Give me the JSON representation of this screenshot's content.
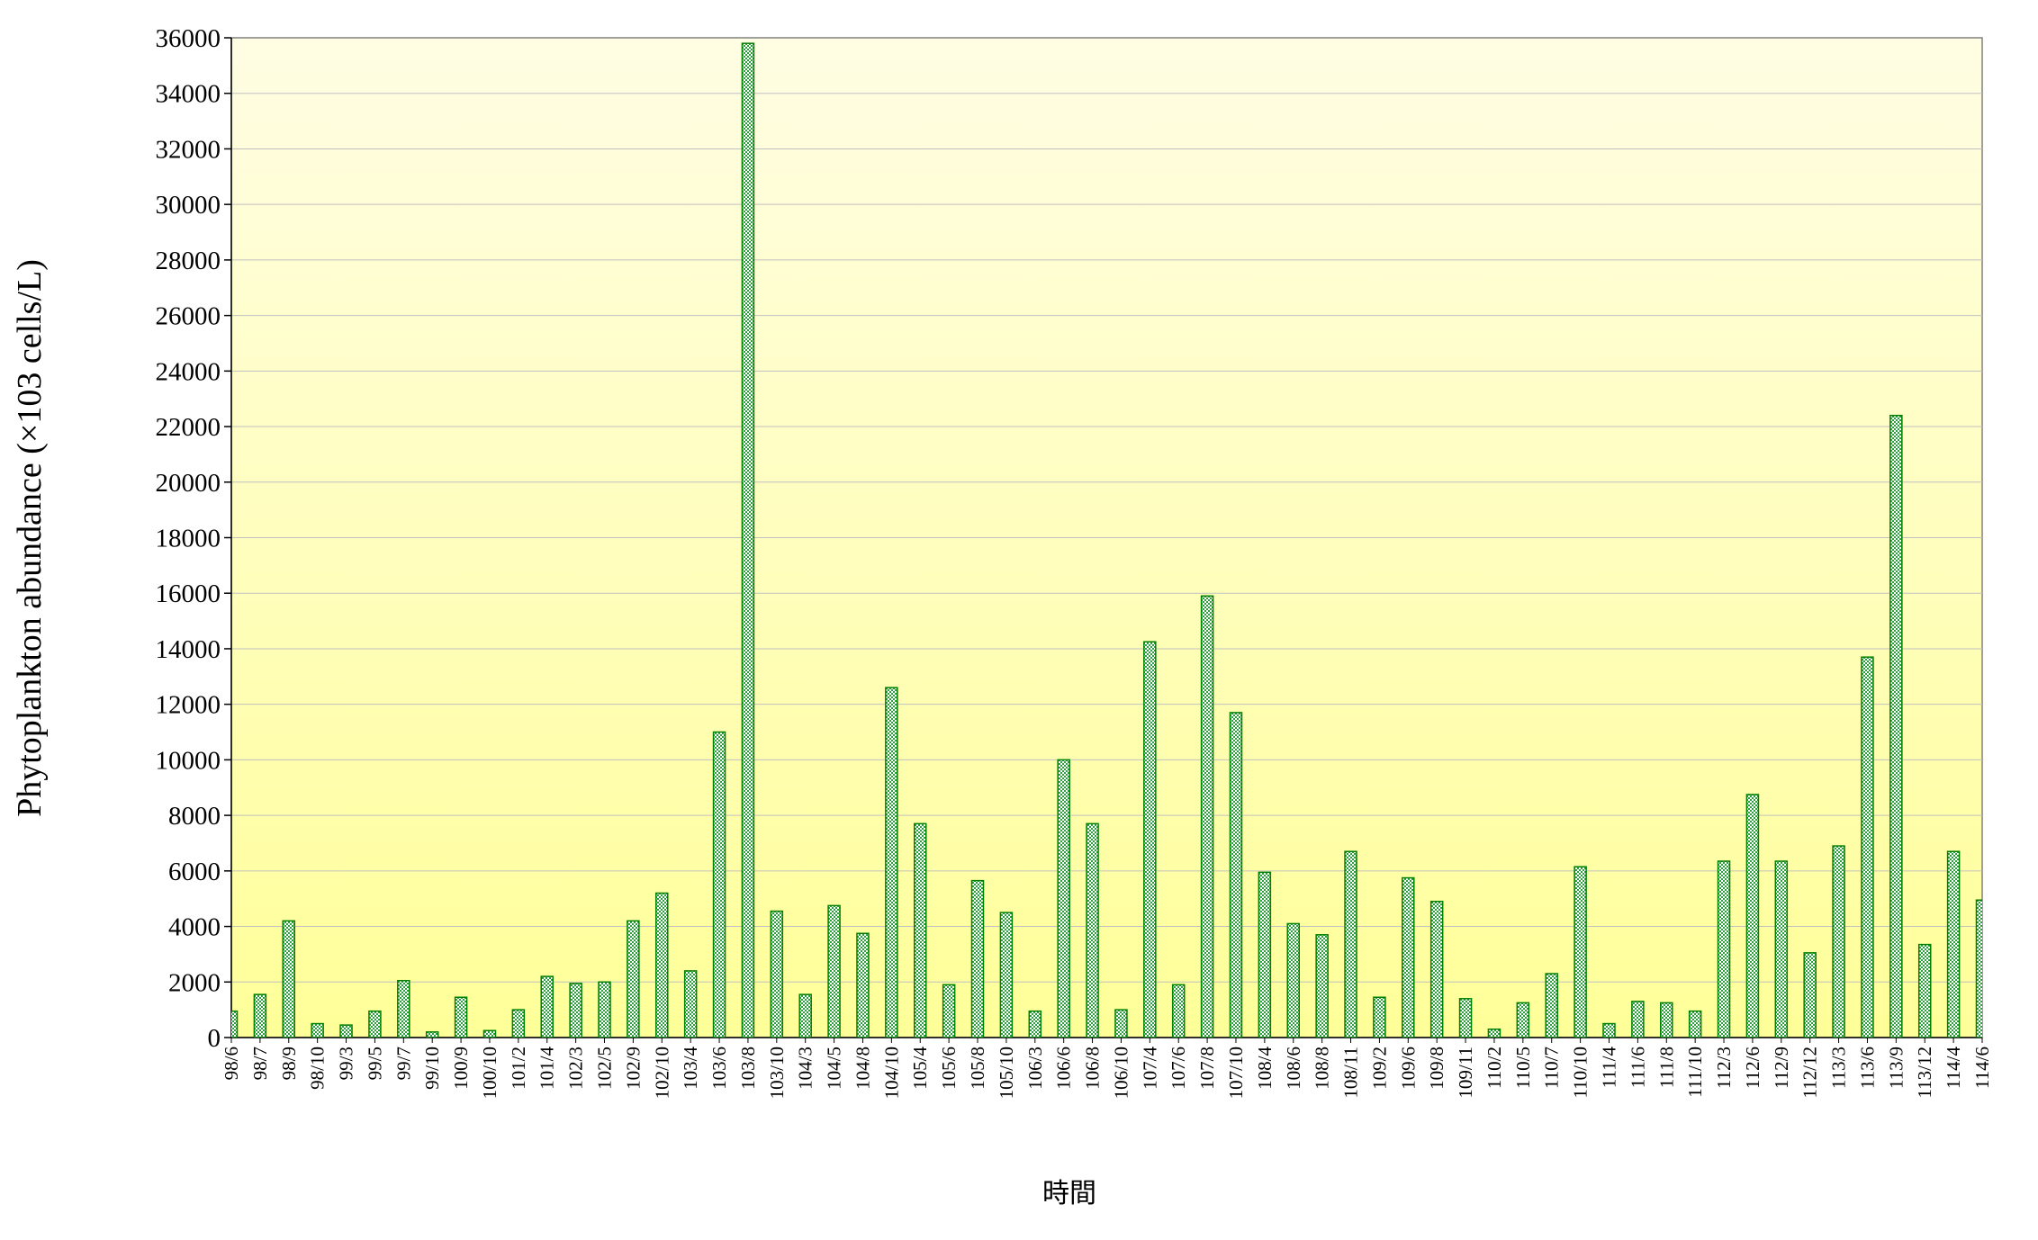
{
  "chart_data": {
    "type": "bar",
    "y_label": "Phytoplankton abundance (×103 cells/L)",
    "x_label": "時間",
    "color": "#008000",
    "ylim": [
      0,
      36000
    ],
    "yticks": [
      0,
      2000,
      4000,
      6000,
      8000,
      10000,
      12000,
      14000,
      16000,
      18000,
      20000,
      22000,
      24000,
      26000,
      28000,
      30000,
      32000,
      34000,
      36000
    ],
    "grid": true,
    "categories": [
      "98/6",
      "98/7",
      "98/9",
      "98/10",
      "99/3",
      "99/5",
      "99/7",
      "99/10",
      "100/9",
      "100/10",
      "101/2",
      "101/4",
      "102/3",
      "102/5",
      "102/9",
      "102/10",
      "103/4",
      "103/6",
      "103/8",
      "103/10",
      "104/3",
      "104/5",
      "104/8",
      "104/10",
      "105/4",
      "105/6",
      "105/8",
      "105/10",
      "106/3",
      "106/6",
      "106/8",
      "106/10",
      "107/4",
      "107/6",
      "107/8",
      "107/10",
      "108/4",
      "108/6",
      "108/8",
      "108/11",
      "109/2",
      "109/6",
      "109/8",
      "109/11",
      "110/2",
      "110/5",
      "110/7",
      "110/10",
      "111/4",
      "111/6",
      "111/8",
      "111/10",
      "112/3",
      "112/6",
      "112/9",
      "112/12",
      "113/3",
      "113/6",
      "113/9",
      "113/12",
      "114/4",
      "114/6"
    ],
    "values": [
      950,
      1550,
      4200,
      500,
      450,
      950,
      2050,
      200,
      1450,
      250,
      1000,
      2200,
      1950,
      2000,
      4200,
      5200,
      2400,
      11000,
      35800,
      4550,
      1550,
      4750,
      3750,
      12600,
      7700,
      1900,
      5650,
      4500,
      950,
      10000,
      7700,
      1000,
      14250,
      1900,
      15900,
      11700,
      5950,
      4100,
      3700,
      6700,
      1450,
      5750,
      4900,
      1400,
      300,
      1250,
      2300,
      6150,
      500,
      1300,
      1250,
      950,
      6350,
      8750,
      6350,
      3050,
      6900,
      13700,
      22400,
      3350,
      6700,
      4950
    ]
  }
}
